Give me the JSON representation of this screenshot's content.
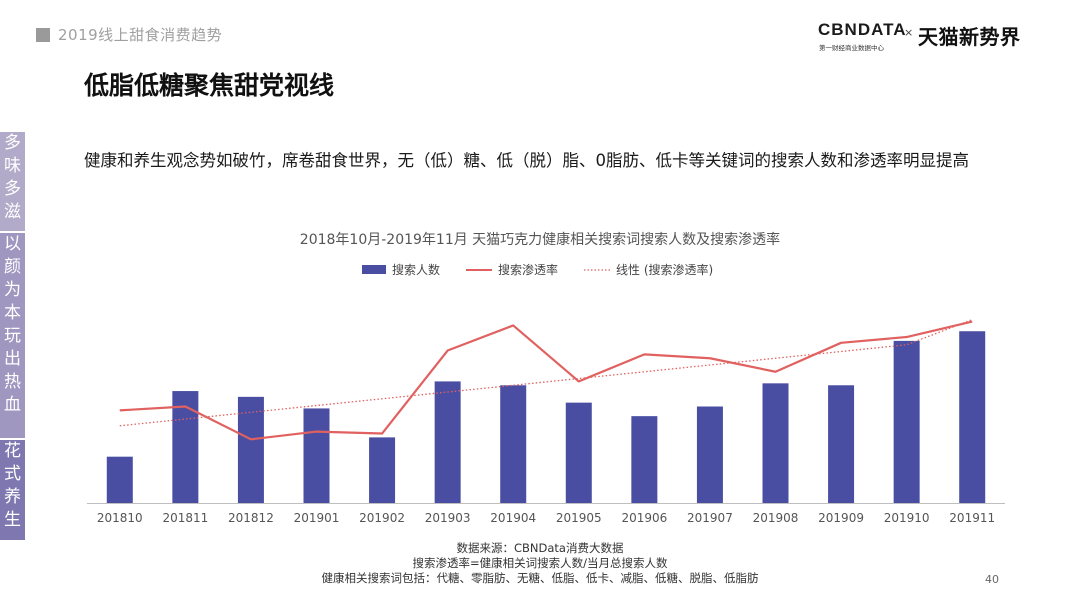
{
  "header": {
    "section_title": "2019线上甜食消费趋势",
    "logo": {
      "cbn": "CBNDATA",
      "cbn_sub": "第一财经商业数据中心",
      "separator": "×",
      "partner": "天猫新势界"
    }
  },
  "page_title": "低脂低糖聚焦甜党视线",
  "subtitle": "健康和养生观念势如破竹，席卷甜食世界，无（低）糖、低（脱）脂、0脂肪、低卡等关键词的搜索人数和渗透率明显提高",
  "side_banner": [
    {
      "chars": [
        "多",
        "味",
        "多",
        "滋"
      ]
    },
    {
      "chars": [
        "以",
        "颜",
        "为",
        "本",
        "玩",
        "出",
        "热",
        "血"
      ]
    },
    {
      "chars": [
        "花",
        "式",
        "养",
        "生"
      ]
    }
  ],
  "colors": {
    "bar": "#4a4ea3",
    "line": "#e0615f",
    "trend": "#e0615f",
    "banner_1": "#b1aac8",
    "banner_2": "#9f97c0",
    "banner_3": "#7f77b0"
  },
  "chart_data": {
    "type": "bar",
    "title": "2018年10月-2019年11月 天猫巧克力健康相关搜索词搜索人数及搜索渗透率",
    "categories": [
      "201810",
      "201811",
      "201812",
      "201901",
      "201902",
      "201903",
      "201904",
      "201905",
      "201906",
      "201907",
      "201908",
      "201909",
      "201910",
      "201911"
    ],
    "series": [
      {
        "name": "搜索人数",
        "type": "bar",
        "values": [
          24,
          58,
          55,
          49,
          34,
          63,
          61,
          52,
          45,
          50,
          62,
          61,
          84,
          89
        ]
      },
      {
        "name": "搜索渗透率",
        "type": "line",
        "values": [
          48,
          50,
          33,
          37,
          36,
          79,
          92,
          63,
          77,
          75,
          68,
          83,
          86,
          94
        ]
      },
      {
        "name": "线性 (搜索渗透率)",
        "type": "trendline",
        "values": [
          40,
          43.5,
          47,
          50.5,
          54,
          57.5,
          61,
          64.5,
          68,
          71.5,
          75,
          78.5,
          82,
          95
        ]
      }
    ],
    "legend_position": "top-center",
    "ylim": [
      0,
      100
    ],
    "grid": false,
    "y_axis_visible": false
  },
  "footer": {
    "source": "数据来源：CBNData消费大数据",
    "definition": "搜索渗透率=健康相关词搜索人数/当月总搜索人数",
    "keywords": "健康相关搜索词包括：代糖、零脂肪、无糖、低脂、低卡、减脂、低糖、脱脂、低脂肪"
  },
  "page_number": "40"
}
